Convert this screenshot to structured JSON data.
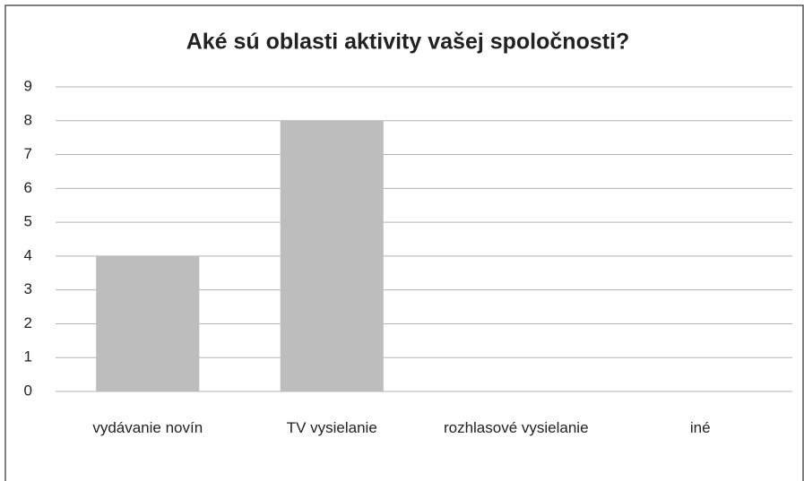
{
  "chart_data": {
    "type": "bar",
    "title": "Aké sú oblasti aktivity vašej spoločnosti?",
    "categories": [
      "vydávanie novín",
      "TV vysielanie",
      "rozhlasové vysielanie",
      "iné"
    ],
    "values": [
      4,
      8,
      0,
      0
    ],
    "color": "#bdbdbd",
    "ylim": [
      0,
      9
    ],
    "yticks": [
      0,
      1,
      2,
      3,
      4,
      5,
      6,
      7,
      8,
      9
    ],
    "grid": true
  }
}
